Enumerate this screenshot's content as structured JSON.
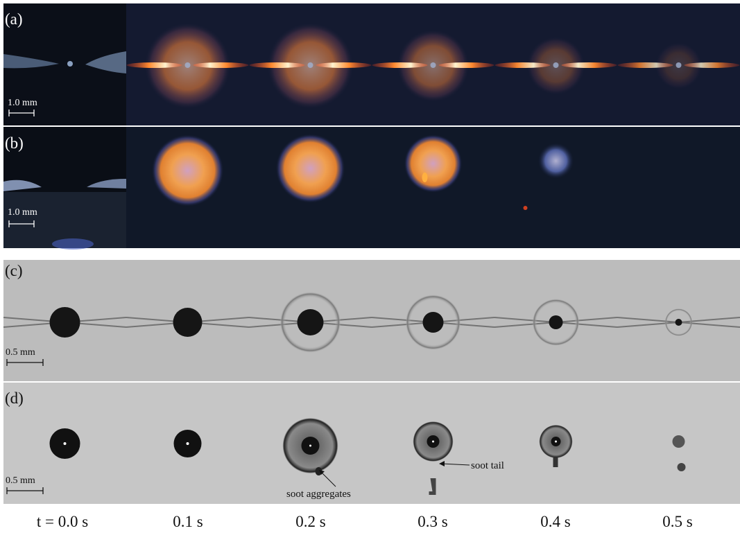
{
  "rows": [
    {
      "label": "(a)",
      "scale_bar": "1.0 mm"
    },
    {
      "label": "(b)",
      "scale_bar": "1.0 mm"
    },
    {
      "label": "(c)",
      "scale_bar": "0.5 mm"
    },
    {
      "label": "(d)",
      "scale_bar": "0.5 mm"
    }
  ],
  "annotations": [
    "soot aggregates",
    "soot tail"
  ],
  "time_labels": [
    "t = 0.0 s",
    "0.1 s",
    "0.2 s",
    "0.3 s",
    "0.4 s",
    "0.5 s"
  ]
}
